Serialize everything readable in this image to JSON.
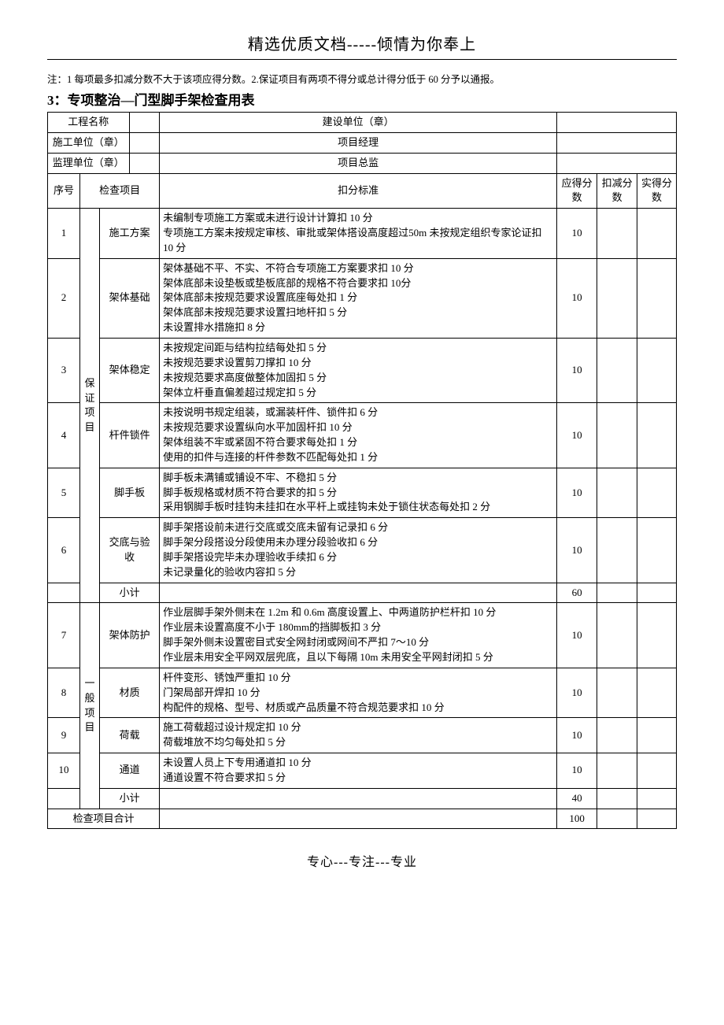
{
  "header": {
    "top_title": "精选优质文档-----倾情为你奉上",
    "note": "注：1 每项最多扣减分数不大于该项应得分数。2.保证项目有两项不得分或总计得分低于 60 分予以通报。",
    "section_title": "3：专项整治—门型脚手架检查用表"
  },
  "meta": {
    "project_name_label": "工程名称",
    "project_name_value": "",
    "build_unit_label": "建设单位（章）",
    "build_unit_value": "",
    "constructor_label": "施工单位（章）",
    "constructor_value": "",
    "pm_label": "项目经理",
    "pm_value": "",
    "supervisor_label": "监理单位（章）",
    "supervisor_value": "",
    "director_label": "项目总监",
    "director_value": ""
  },
  "cols": {
    "seq": "序号",
    "check_item": "检查项目",
    "criteria": "扣分标准",
    "should": "应得分数",
    "deduct": "扣减分数",
    "actual": "实得分数"
  },
  "groups": [
    {
      "group_label": "保证项目",
      "rows": [
        {
          "seq": "1",
          "item": "施工方案",
          "criteria": "未编制专项施工方案或未进行设计计算扣 10 分\n专项施工方案未按规定审核、审批或架体搭设高度超过50m 未按规定组织专家论证扣 10 分",
          "should": "10"
        },
        {
          "seq": "2",
          "item": "架体基础",
          "criteria": "架体基础不平、不实、不符合专项施工方案要求扣 10 分\n架体底部未设垫板或垫板底部的规格不符合要求扣 10分\n架体底部未按规范要求设置底座每处扣 1 分\n架体底部未按规范要求设置扫地杆扣 5 分\n未设置排水措施扣 8 分",
          "should": "10"
        },
        {
          "seq": "3",
          "item": "架体稳定",
          "criteria": "未按规定间距与结构拉结每处扣 5 分\n未按规范要求设置剪刀撑扣 10 分\n未按规范要求高度做整体加固扣 5 分\n架体立杆垂直偏差超过规定扣 5 分",
          "should": "10"
        },
        {
          "seq": "4",
          "item": "杆件锁件",
          "criteria": "未按说明书规定组装，或漏装杆件、锁件扣 6 分\n未按规范要求设置纵向水平加固杆扣 10 分\n架体组装不牢或紧固不符合要求每处扣 1 分\n使用的扣件与连接的杆件参数不匹配每处扣 1 分",
          "should": "10"
        },
        {
          "seq": "5",
          "item": "脚手板",
          "criteria": "脚手板未满铺或铺设不牢、不稳扣 5 分\n脚手板规格或材质不符合要求的扣 5 分\n采用钢脚手板时挂钩未挂扣在水平杆上或挂钩未处于锁住状态每处扣 2 分",
          "should": "10"
        },
        {
          "seq": "6",
          "item": "交底与验 收",
          "criteria": "脚手架搭设前未进行交底或交底未留有记录扣 6 分\n脚手架分段搭设分段使用未办理分段验收扣 6 分\n脚手架搭设完毕未办理验收手续扣 6 分\n未记录量化的验收内容扣 5 分",
          "should": "10"
        }
      ],
      "subtotal": {
        "label": "小计",
        "should": "60"
      }
    },
    {
      "group_label": "一般项目",
      "rows": [
        {
          "seq": "7",
          "item": "架体防护",
          "criteria": "作业层脚手架外侧未在 1.2m 和 0.6m 高度设置上、中两道防护栏杆扣 10 分\n作业层未设置高度不小于 180mm的挡脚板扣 3 分\n脚手架外侧未设置密目式安全网封闭或网间不严扣 7～10 分\n作业层未用安全平网双层兜底，且以下每隔 10m 未用安全平网封闭扣 5 分",
          "should": "10"
        },
        {
          "seq": "8",
          "item": "材质",
          "criteria": "杆件变形、锈蚀严重扣 10 分\n门架局部开焊扣 10 分\n构配件的规格、型号、材质或产品质量不符合规范要求扣 10 分",
          "should": "10"
        },
        {
          "seq": "9",
          "item": "荷载",
          "criteria": "施工荷载超过设计规定扣 10 分\n荷载堆放不均匀每处扣 5 分",
          "should": "10"
        },
        {
          "seq": "10",
          "item": "通道",
          "criteria": "未设置人员上下专用通道扣 10 分\n通道设置不符合要求扣 5 分",
          "should": "10"
        }
      ],
      "subtotal": {
        "label": "小计",
        "should": "40"
      }
    }
  ],
  "total": {
    "label": "检查项目合计",
    "should": "100"
  },
  "footer": "专心---专注---专业"
}
